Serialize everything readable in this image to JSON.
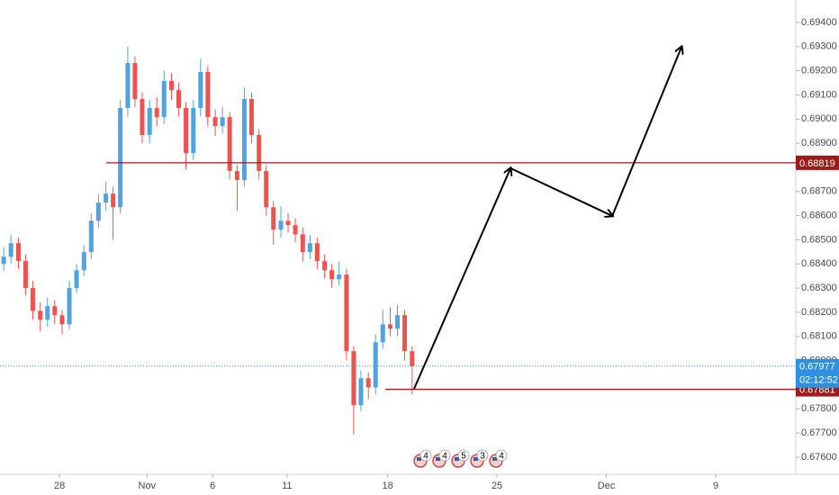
{
  "chart_data": {
    "type": "candlestick",
    "x": [
      -2.55,
      -2.22,
      -1.88,
      -1.55,
      -1.22,
      -0.88,
      -0.55,
      -0.22,
      0.12,
      0.45,
      0.78,
      1.12,
      1.45,
      1.78,
      2.12,
      2.45,
      2.78,
      3.12,
      3.45,
      3.78,
      4.12,
      4.45,
      4.78,
      5.12,
      5.45,
      5.78,
      6.12,
      6.45,
      6.78,
      7.12,
      7.45,
      7.78,
      8.12,
      8.45,
      8.78,
      9.12,
      9.45,
      9.78,
      10.12,
      10.45,
      10.78,
      11.12,
      11.45,
      11.78,
      12.12,
      12.45,
      12.78,
      13.12,
      13.45,
      13.78,
      14.12,
      14.45,
      14.78,
      15.12,
      15.45,
      15.78,
      16.12
    ],
    "open": [
      0.684,
      0.6843,
      0.68486,
      0.68412,
      0.683,
      0.68206,
      0.68169,
      0.68225,
      0.68188,
      0.6815,
      0.683,
      0.68374,
      0.68449,
      0.68579,
      0.68654,
      0.68691,
      0.68635,
      0.69046,
      0.69232,
      0.69083,
      0.68934,
      0.69046,
      0.69008,
      0.69158,
      0.6912,
      0.69046,
      0.68859,
      0.69046,
      0.69195,
      0.69008,
      0.68971,
      0.69008,
      0.68785,
      0.68747,
      0.69083,
      0.68934,
      0.68785,
      0.68635,
      0.68542,
      0.68579,
      0.68561,
      0.68523,
      0.68449,
      0.68486,
      0.68412,
      0.68374,
      0.68337,
      0.68356,
      0.68039,
      0.67815,
      0.67927,
      0.67889,
      0.68076,
      0.6815,
      0.68132,
      0.68188,
      0.68039
    ],
    "high": [
      0.6847,
      0.6852,
      0.6851,
      0.6844,
      0.6833,
      0.6824,
      0.6826,
      0.6825,
      0.6821,
      0.6833,
      0.684,
      0.6848,
      0.6861,
      0.6869,
      0.6874,
      0.6872,
      0.6908,
      0.693,
      0.6926,
      0.6911,
      0.6908,
      0.6909,
      0.692,
      0.6919,
      0.6915,
      0.6907,
      0.6908,
      0.6925,
      0.6922,
      0.6904,
      0.6905,
      0.6903,
      0.6881,
      0.6913,
      0.6911,
      0.6896,
      0.6881,
      0.6866,
      0.6864,
      0.6861,
      0.6859,
      0.6855,
      0.6852,
      0.6851,
      0.6844,
      0.684,
      0.6841,
      0.6838,
      0.6806,
      0.6796,
      0.6795,
      0.6811,
      0.6821,
      0.6822,
      0.6823,
      0.6821,
      0.6806
    ],
    "low": [
      0.6837,
      0.684,
      0.6838,
      0.6827,
      0.6817,
      0.6812,
      0.6814,
      0.6815,
      0.6811,
      0.6813,
      0.6828,
      0.6835,
      0.6842,
      0.6855,
      0.6862,
      0.685,
      0.6861,
      0.6901,
      0.6905,
      0.689,
      0.689,
      0.6897,
      0.6898,
      0.6908,
      0.6901,
      0.6879,
      0.6883,
      0.6901,
      0.6897,
      0.6893,
      0.6894,
      0.6875,
      0.6862,
      0.6872,
      0.689,
      0.6875,
      0.686,
      0.6848,
      0.6851,
      0.6853,
      0.6849,
      0.6841,
      0.6842,
      0.6838,
      0.6834,
      0.683,
      0.6831,
      0.68,
      0.67695,
      0.6779,
      0.6784,
      0.6786,
      0.6805,
      0.681,
      0.681,
      0.68,
      0.6786
    ],
    "close": [
      0.6843,
      0.68486,
      0.68412,
      0.683,
      0.68206,
      0.68169,
      0.68225,
      0.68188,
      0.6815,
      0.683,
      0.68374,
      0.68449,
      0.68579,
      0.68654,
      0.68691,
      0.68635,
      0.69046,
      0.69232,
      0.69083,
      0.68934,
      0.69046,
      0.69008,
      0.69158,
      0.6912,
      0.69046,
      0.68859,
      0.69046,
      0.69195,
      0.69008,
      0.68971,
      0.69008,
      0.68785,
      0.68747,
      0.69083,
      0.68934,
      0.68785,
      0.68635,
      0.68542,
      0.68579,
      0.68561,
      0.68523,
      0.68449,
      0.68486,
      0.68412,
      0.68374,
      0.68337,
      0.68356,
      0.68039,
      0.67815,
      0.67927,
      0.67889,
      0.68076,
      0.6815,
      0.68132,
      0.68188,
      0.68039,
      0.67977
    ],
    "up_color": "#4ea3e0",
    "down_color": "#ef5350",
    "xlim": [
      -2.72,
      33.66
    ],
    "xticks": [
      {
        "value": 0,
        "label": "28"
      },
      {
        "value": 4,
        "label": "Nov"
      },
      {
        "value": 7,
        "label": "6"
      },
      {
        "value": 10.4,
        "label": "11"
      },
      {
        "value": 15,
        "label": "18"
      },
      {
        "value": 20,
        "label": "25"
      },
      {
        "value": 25,
        "label": "Dec"
      },
      {
        "value": 30,
        "label": "9"
      }
    ],
    "ylim": [
      0.67529,
      0.69493
    ],
    "yticks": [
      {
        "value": 0.694,
        "label": "0.69400"
      },
      {
        "value": 0.693,
        "label": "0.69300"
      },
      {
        "value": 0.692,
        "label": "0.69200"
      },
      {
        "value": 0.691,
        "label": "0.69100"
      },
      {
        "value": 0.69,
        "label": "0.69000"
      },
      {
        "value": 0.689,
        "label": "0.68900"
      },
      {
        "value": 0.688,
        "label": "0.68800"
      },
      {
        "value": 0.687,
        "label": "0.68700"
      },
      {
        "value": 0.686,
        "label": "0.68600"
      },
      {
        "value": 0.685,
        "label": "0.68500"
      },
      {
        "value": 0.684,
        "label": "0.68400"
      },
      {
        "value": 0.683,
        "label": "0.68300"
      },
      {
        "value": 0.682,
        "label": "0.68200"
      },
      {
        "value": 0.681,
        "label": "0.68100"
      },
      {
        "value": 0.68,
        "label": "0.68000"
      },
      {
        "value": 0.679,
        "label": "0.67900"
      },
      {
        "value": 0.678,
        "label": "0.67800"
      },
      {
        "value": 0.677,
        "label": "0.67700"
      },
      {
        "value": 0.676,
        "label": "0.67600"
      }
    ],
    "levels": [
      {
        "value": 0.68819,
        "x_start": 2.14,
        "color": "#a01818"
      },
      {
        "value": 0.67881,
        "x_start": 14.9,
        "color": "#a01818"
      }
    ],
    "last_price": 0.67977,
    "countdown": "02:12:52",
    "last_color": "#2f8fe0",
    "arrow": {
      "x": [
        16.21,
        20.62,
        25.27,
        28.44
      ],
      "y": [
        0.67883,
        0.68796,
        0.68599,
        0.69299
      ]
    },
    "events": [
      "4",
      "4",
      "5",
      "3",
      "4"
    ]
  }
}
